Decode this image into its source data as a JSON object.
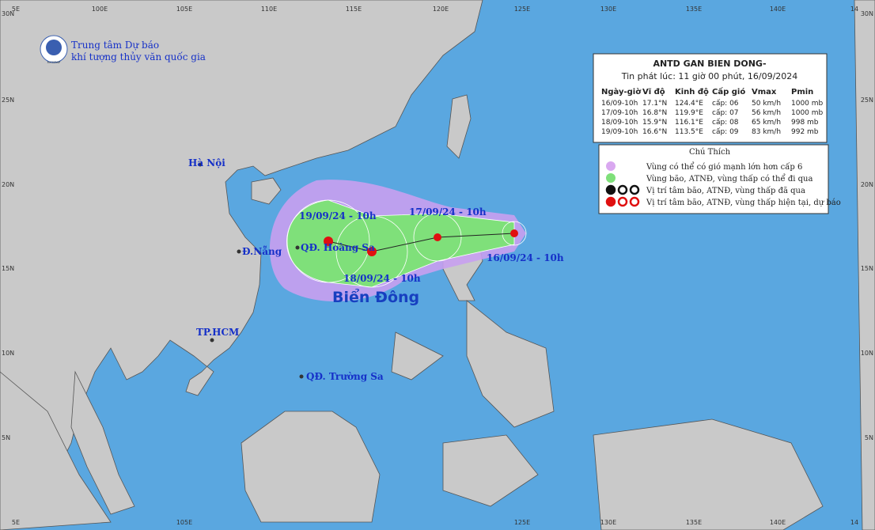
{
  "map": {
    "lon_labels_top": [
      "5E",
      "100E",
      "105E",
      "110E",
      "115E",
      "120E",
      "125E",
      "130E",
      "135E",
      "140E",
      "14"
    ],
    "lat_labels_left": [
      "30N",
      "25N",
      "20N",
      "15N",
      "10N",
      "5N"
    ],
    "lat_labels_right": [
      "30N",
      "25N",
      "20N",
      "15N",
      "10N",
      "5N"
    ],
    "lon_labels_bottom": [
      "5E",
      "105E",
      "125E",
      "130E",
      "135E",
      "140E",
      "14"
    ],
    "logo": {
      "line1": "Trung tâm Dự báo",
      "line2": "khí tượng thủy văn quốc gia",
      "badge": "NCHMF"
    },
    "places": [
      "Hà Nội",
      "Đ.Nẵng",
      "QĐ. Hoàng Sa",
      "TP.HCM",
      "QĐ. Trường Sa"
    ],
    "sea_name": "Biển Đông",
    "track_labels": [
      "16/09/24 - 10h",
      "17/09/24 - 10h",
      "18/09/24 - 10h",
      "19/09/24 - 10h"
    ]
  },
  "table": {
    "title": "ANTD GAN BIEN DONG-",
    "subtitle": "Tin phát lúc: 11 giờ 00 phút, 16/09/2024",
    "header": [
      "Ngày-giờ",
      "Vĩ độ",
      "Kinh độ",
      "Cấp gió",
      "Vmax",
      "Pmin"
    ],
    "rows": [
      [
        "16/09-10h",
        "17.1°N",
        "124.4°E",
        "cấp: 06",
        "50 km/h",
        "1000 mb"
      ],
      [
        "17/09-10h",
        "16.8°N",
        "119.9°E",
        "cấp: 07",
        "56 km/h",
        "1000 mb"
      ],
      [
        "18/09-10h",
        "15.9°N",
        "116.1°E",
        "cấp: 08",
        "65 km/h",
        "998 mb"
      ],
      [
        "19/09-10h",
        "16.6°N",
        "113.5°E",
        "cấp: 09",
        "83 km/h",
        "992 mb"
      ]
    ]
  },
  "legend": {
    "title": "Chú Thích",
    "items": [
      "Vùng có thể có gió mạnh lớn hơn cấp 6",
      "Vùng bão, ATNĐ, vùng thấp có thể đi qua",
      "Vị trí tâm bão, ATNĐ, vùng thấp đã qua",
      "Vị trí tâm bão, ATNĐ, vùng thấp hiện tại, dự báo"
    ]
  }
}
